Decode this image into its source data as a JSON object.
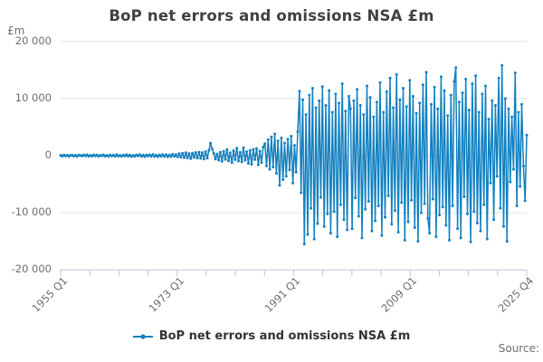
{
  "chart": {
    "title": "BoP net errors and omissions NSA £m",
    "unit_label": "£m",
    "source_label": "Source:",
    "legend": {
      "label": "BoP net errors and omissions NSA £m"
    }
  },
  "colors": {
    "accent": "#1280c0",
    "grid": "#e3e3e3",
    "axis": "#b9c6dc",
    "text_dark": "#414042",
    "text_gray": "#6e6e6e"
  },
  "chart_data": {
    "type": "line",
    "title": "BoP net errors and omissions NSA £m",
    "xlabel": "",
    "ylabel": "£m",
    "x_start": "1955 Q1",
    "x_end": "2025 Q4",
    "frequency": "quarterly",
    "ylim": [
      -20000,
      20000
    ],
    "grid": "horizontal",
    "legend_position": "bottom",
    "line_color": "#1280c0",
    "y_tick_values": [
      20000,
      10000,
      0,
      -10000,
      -20000
    ],
    "y_tick_labels": [
      "20 000",
      "10 000",
      "0",
      "-10 000",
      "-20 000"
    ],
    "x_tick_labels": [
      "1955 Q1",
      "1973 Q1",
      "1991 Q1",
      "2009 Q1",
      "2025 Q4"
    ],
    "x_minor_tick_count": 17,
    "series_name": "BoP net errors and omissions NSA £m",
    "values": [
      60,
      -90,
      120,
      -60,
      80,
      -120,
      40,
      100,
      -80,
      60,
      -140,
      90,
      50,
      -70,
      130,
      -50,
      160,
      -110,
      70,
      -90,
      140,
      -60,
      110,
      -130,
      80,
      -40,
      150,
      -100,
      60,
      -150,
      120,
      -70,
      90,
      -120,
      170,
      -80,
      50,
      -130,
      100,
      -60,
      180,
      -90,
      130,
      -160,
      70,
      -110,
      150,
      -50,
      200,
      -120,
      90,
      -170,
      110,
      -70,
      160,
      -120,
      220,
      -140,
      100,
      -180,
      130,
      -90,
      210,
      -150,
      170,
      -210,
      120,
      -160,
      240,
      -130,
      190,
      -220,
      350,
      -280,
      420,
      -350,
      500,
      -400,
      380,
      -520,
      450,
      -300,
      560,
      -430,
      620,
      -480,
      540,
      -600,
      700,
      -450,
      900,
      2200,
      1200,
      400,
      -600,
      300,
      -800,
      600,
      -1000,
      750,
      -650,
      1100,
      -900,
      500,
      -1200,
      850,
      -700,
      1300,
      -950,
      600,
      -1100,
      1400,
      -800,
      700,
      -1350,
      900,
      -1500,
      1100,
      -700,
      1250,
      -1600,
      800,
      -1200,
      1500,
      2100,
      -1800,
      2800,
      -2400,
      3300,
      -2000,
      3800,
      -3100,
      2600,
      -5200,
      3100,
      -4200,
      2200,
      -3600,
      2900,
      -2500,
      3400,
      -4800,
      1800,
      -2900,
      4200,
      11300,
      -6500,
      9800,
      -15500,
      7200,
      -13800,
      10600,
      -9200,
      11800,
      -14600,
      8400,
      -11900,
      9600,
      -7300,
      12100,
      -12400,
      8800,
      -10200,
      11400,
      -13600,
      7600,
      -9800,
      10800,
      -14200,
      9200,
      -8600,
      12600,
      -11200,
      7800,
      -13000,
      10400,
      8200,
      -12800,
      9600,
      -7400,
      11600,
      -10600,
      8800,
      -14400,
      7200,
      -9400,
      12200,
      -8000,
      10200,
      -13200,
      6800,
      -11400,
      9400,
      -8800,
      12800,
      -14000,
      7600,
      -10800,
      11200,
      -7000,
      13600,
      -12000,
      8400,
      -9600,
      14200,
      -13400,
      9800,
      -8200,
      11800,
      -14800,
      8600,
      -11600,
      13200,
      -7800,
      10400,
      -12600,
      7400,
      -15000,
      9200,
      -10000,
      12400,
      -8400,
      14600,
      -11000,
      -13600,
      9000,
      -7600,
      12000,
      -14200,
      8200,
      -10400,
      13800,
      -9000,
      11400,
      -12200,
      7000,
      -14800,
      10600,
      -8800,
      13000,
      15400,
      -12800,
      9400,
      -14400,
      11000,
      -7200,
      13400,
      -10200,
      8000,
      -15100,
      12600,
      -9800,
      14000,
      -11800,
      7600,
      -13200,
      10800,
      -8600,
      12200,
      -14600,
      6400,
      -4800,
      9600,
      -11200,
      8800,
      -3600,
      13600,
      -9200,
      15800,
      -12400,
      10000,
      -15000,
      8200,
      -4600,
      6800,
      -2400,
      14500,
      -8800,
      7600,
      -5400,
      9000,
      -1800,
      -7900,
      3600
    ]
  }
}
